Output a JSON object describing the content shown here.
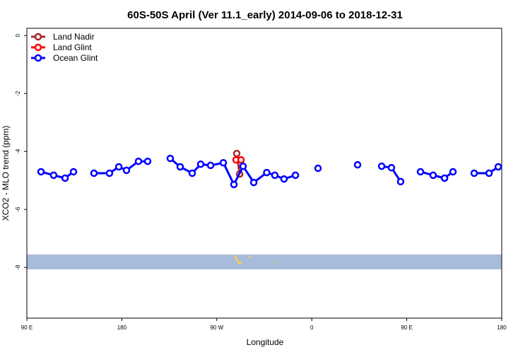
{
  "chart_data": {
    "type": "line",
    "title": "60S-50S April (Ver 11.1_early)   2014-09-06 to 2018-12-31",
    "xlabel": "Longitude",
    "ylabel": "XCO2 - MLO trend (ppm)",
    "xlim": [
      90,
      540
    ],
    "ylim": [
      -9.75,
      0.25
    ],
    "xticks": [
      {
        "value": 90,
        "label": "90 E"
      },
      {
        "value": 180,
        "label": "180"
      },
      {
        "value": 270,
        "label": "90 W"
      },
      {
        "value": 360,
        "label": "0"
      },
      {
        "value": 450,
        "label": "90 E"
      },
      {
        "value": 540,
        "label": "180"
      }
    ],
    "yticks": [
      0,
      -2,
      -4,
      -6,
      -8
    ],
    "legend": "top-left",
    "series": [
      {
        "name": "Land Nadir",
        "color": "#a52a2a",
        "x": [
          288.9,
          291.6
        ],
        "values": [
          -4.07,
          -4.78
        ]
      },
      {
        "name": "Land Glint",
        "color": "#ff0000",
        "x": [
          288.2,
          292.9
        ],
        "values": [
          -4.29,
          -4.29
        ]
      },
      {
        "name": "Ocean Glint",
        "color": "#0000ff",
        "x": [
          103.4,
          115.4,
          126.2,
          134.2,
          null,
          153.6,
          168.3,
          177.1,
          184.4,
          195.8,
          204.5,
          null,
          225.9,
          235.3,
          246.7,
          254.7,
          264.1,
          276.2,
          286.2,
          294.9,
          305.0,
          317.3,
          325.0,
          333.7,
          344.5,
          null,
          365.9,
          null,
          403.4,
          null,
          426.2,
          435.5,
          444.2,
          null,
          463.0,
          475.0,
          485.8,
          493.8,
          null,
          513.9,
          528.0,
          536.7
        ],
        "values": [
          -4.7,
          -4.82,
          -4.92,
          -4.7,
          null,
          -4.75,
          -4.75,
          -4.53,
          -4.65,
          -4.34,
          -4.34,
          null,
          -4.24,
          -4.53,
          -4.75,
          -4.44,
          -4.48,
          -4.39,
          -5.14,
          -4.51,
          -5.07,
          -4.73,
          -4.82,
          -4.95,
          -4.82,
          null,
          -4.58,
          null,
          -4.46,
          null,
          -4.51,
          -4.56,
          -5.04,
          null,
          -4.7,
          -4.82,
          -4.92,
          -4.7,
          null,
          -4.75,
          -4.75,
          -4.53
        ]
      }
    ]
  }
}
